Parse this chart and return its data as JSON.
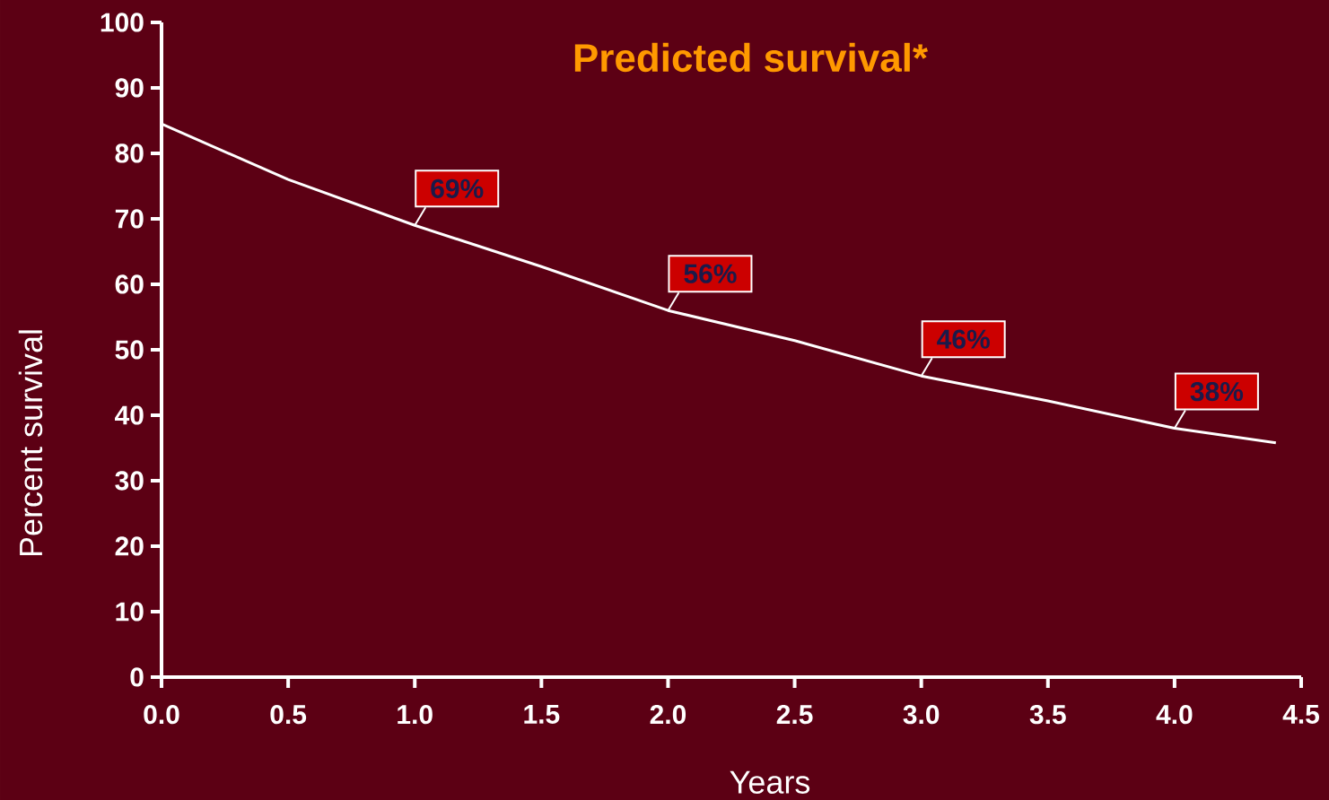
{
  "chart_data": {
    "type": "line",
    "title": "Predicted survival*",
    "xlabel": "Years",
    "ylabel": "Percent survival",
    "x": [
      0,
      0.5,
      1.0,
      1.5,
      2.0,
      2.5,
      3.0,
      3.5,
      4.0,
      4.4
    ],
    "series": [
      {
        "color": "#ffffff",
        "values": [
          84.5,
          76,
          69,
          62.7,
          56,
          51.4,
          46,
          42.2,
          38,
          35.8
        ]
      }
    ],
    "xlim": [
      0,
      4.5
    ],
    "ylim": [
      0,
      100
    ],
    "xticks": [
      {
        "value": 0,
        "label": "0.0"
      },
      {
        "value": 0.5,
        "label": "0.5"
      },
      {
        "value": 1,
        "label": "1.0"
      },
      {
        "value": 1.5,
        "label": "1.5"
      },
      {
        "value": 2,
        "label": "2.0"
      },
      {
        "value": 2.5,
        "label": "2.5"
      },
      {
        "value": 3,
        "label": "3.0"
      },
      {
        "value": 3.5,
        "label": "3.5"
      },
      {
        "value": 4,
        "label": "4.0"
      },
      {
        "value": 4.5,
        "label": "4.5"
      }
    ],
    "yticks": [
      0,
      10,
      20,
      30,
      40,
      50,
      60,
      70,
      80,
      90,
      100
    ],
    "annotations": [
      {
        "text": "69%",
        "x": 1.0,
        "y": 69
      },
      {
        "text": "56%",
        "x": 2.0,
        "y": 56
      },
      {
        "text": "46%",
        "x": 3.0,
        "y": 46
      },
      {
        "text": "38%",
        "x": 4.0,
        "y": 38
      }
    ],
    "legend": false,
    "grid": false,
    "marker": "none",
    "line_style": "solid"
  }
}
